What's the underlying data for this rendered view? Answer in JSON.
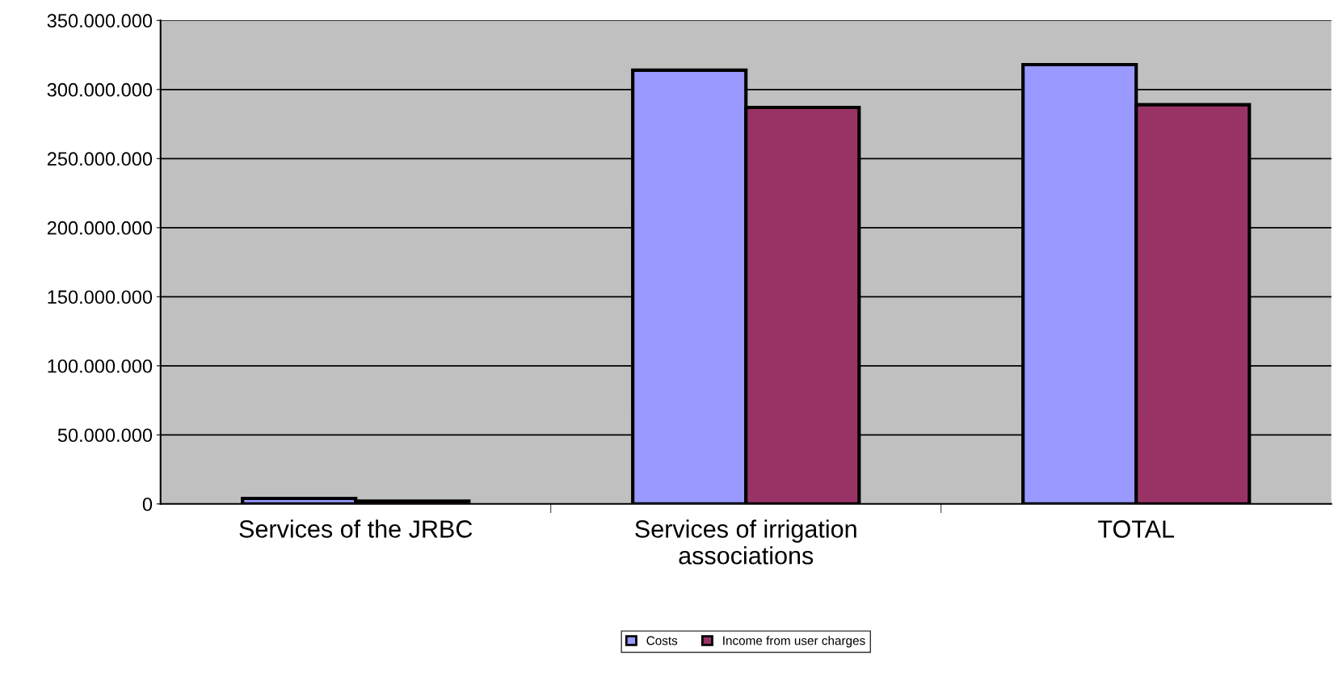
{
  "chart_data": {
    "type": "bar",
    "categories": [
      "Services of the JRBC",
      "Services of irrigation\nassociations",
      "TOTAL"
    ],
    "series": [
      {
        "name": "Costs",
        "color": "#9999ff",
        "values": [
          4000000,
          314000000,
          318000000
        ]
      },
      {
        "name": "Income from user charges",
        "color": "#993366",
        "values": [
          2000000,
          287000000,
          289000000
        ]
      }
    ],
    "ylim": [
      0,
      350000000
    ],
    "yticks": [
      0,
      {
        "value": 50000000,
        "label": "50.000.000"
      },
      {
        "value": 100000000,
        "label": "100.000.000"
      },
      {
        "value": 150000000,
        "label": "150.000.000"
      },
      {
        "value": 200000000,
        "label": "200.000.000"
      },
      {
        "value": 250000000,
        "label": "250.000.000"
      },
      {
        "value": 300000000,
        "label": "300.000.000"
      },
      {
        "value": 350000000,
        "label": "350.000.000"
      }
    ],
    "grid": "y",
    "legend": "bottom"
  }
}
